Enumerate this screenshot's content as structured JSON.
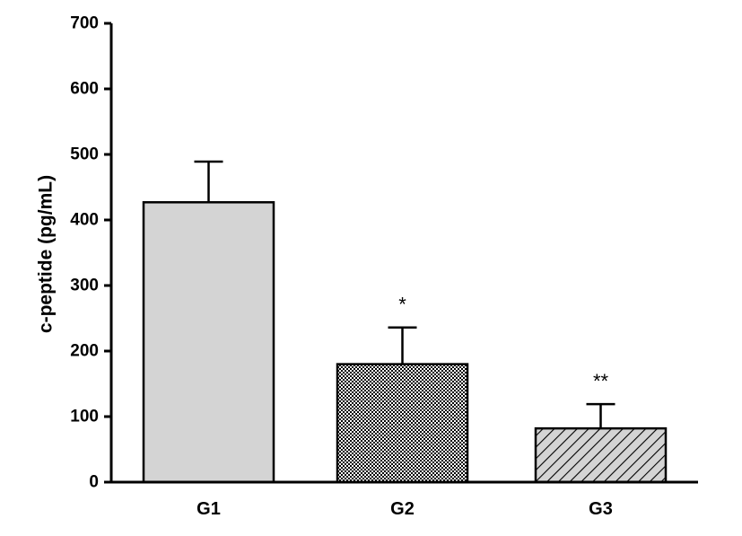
{
  "chart_data": {
    "type": "bar",
    "categories": [
      "G1",
      "G2",
      "G3"
    ],
    "values": [
      427,
      180,
      82
    ],
    "errors": [
      62,
      56,
      37
    ],
    "significance": [
      "",
      "*",
      "**"
    ],
    "xlabel": "",
    "ylabel": "c-peptide (pg/mL)",
    "ylim": [
      0,
      700
    ],
    "yticks": [
      "0",
      "100",
      "200",
      "300",
      "400",
      "500",
      "600",
      "700"
    ],
    "grid": false,
    "fills": [
      "solid-light-gray",
      "crosshatch-dense",
      "diagonal-hatch"
    ],
    "colors": {
      "bar_light": "#d4d4d4",
      "axis": "#000000",
      "hatch": "#000000"
    }
  }
}
